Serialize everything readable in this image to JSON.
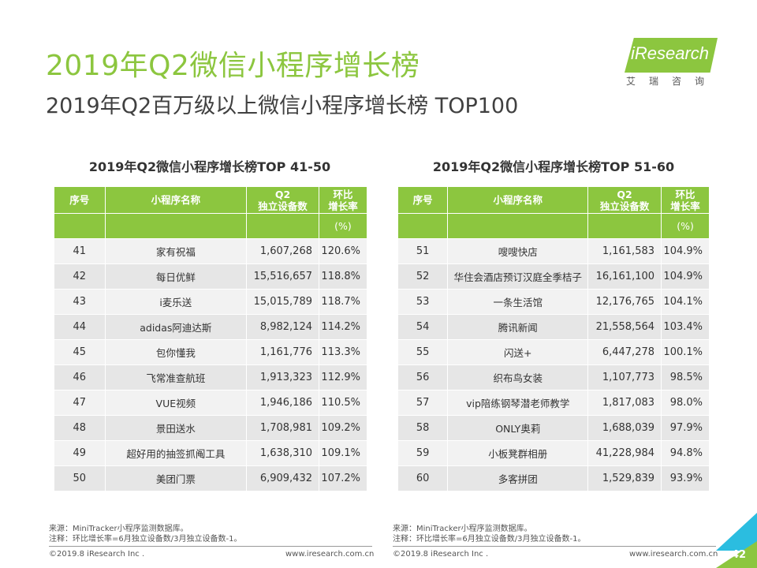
{
  "title": "2019年Q2微信小程序增长榜",
  "subtitle": "2019年Q2百万级以上微信小程序增长榜 TOP100",
  "logo": {
    "brand": "iResearch",
    "cn": "艾瑞咨询",
    "color": "#8cc63f"
  },
  "columns": {
    "rank": "序号",
    "name": "小程序名称",
    "devices_1": "Q2",
    "devices_2": "独立设备数",
    "growth_1": "环比",
    "growth_2": "增长率",
    "growth_unit": "(%)"
  },
  "left_table": {
    "title": "2019年Q2微信小程序增长榜TOP 41-50",
    "rows": [
      {
        "rank": "41",
        "name": "家有祝福",
        "devices": "1,607,268",
        "growth": "120.6%"
      },
      {
        "rank": "42",
        "name": "每日优鲜",
        "devices": "15,516,657",
        "growth": "118.8%"
      },
      {
        "rank": "43",
        "name": "i麦乐送",
        "devices": "15,015,789",
        "growth": "118.7%"
      },
      {
        "rank": "44",
        "name": "adidas阿迪达斯",
        "devices": "8,982,124",
        "growth": "114.2%"
      },
      {
        "rank": "45",
        "name": "包你懂我",
        "devices": "1,161,776",
        "growth": "113.3%"
      },
      {
        "rank": "46",
        "name": "飞常准查航班",
        "devices": "1,913,323",
        "growth": "112.9%"
      },
      {
        "rank": "47",
        "name": "VUE视频",
        "devices": "1,946,186",
        "growth": "110.5%"
      },
      {
        "rank": "48",
        "name": "景田送水",
        "devices": "1,708,981",
        "growth": "109.2%"
      },
      {
        "rank": "49",
        "name": "超好用的抽签抓阄工具",
        "devices": "1,638,310",
        "growth": "109.1%"
      },
      {
        "rank": "50",
        "name": "美团门票",
        "devices": "6,909,432",
        "growth": "107.2%"
      }
    ]
  },
  "right_table": {
    "title": "2019年Q2微信小程序增长榜TOP 51-60",
    "rows": [
      {
        "rank": "51",
        "name": "嗖嗖快店",
        "devices": "1,161,583",
        "growth": "104.9%"
      },
      {
        "rank": "52",
        "name": "华住会酒店预订汉庭全季桔子",
        "devices": "16,161,100",
        "growth": "104.9%"
      },
      {
        "rank": "53",
        "name": "一条生活馆",
        "devices": "12,176,765",
        "growth": "104.1%"
      },
      {
        "rank": "54",
        "name": "腾讯新闻",
        "devices": "21,558,564",
        "growth": "103.4%"
      },
      {
        "rank": "55",
        "name": "闪送+",
        "devices": "6,447,278",
        "growth": "100.1%"
      },
      {
        "rank": "56",
        "name": "织布鸟女装",
        "devices": "1,107,773",
        "growth": "98.5%"
      },
      {
        "rank": "57",
        "name": "vip陪练钢琴潜老师教学",
        "devices": "1,817,083",
        "growth": "98.0%"
      },
      {
        "rank": "58",
        "name": "ONLY奥莉",
        "devices": "1,688,039",
        "growth": "97.9%"
      },
      {
        "rank": "59",
        "name": "小板凳群相册",
        "devices": "41,228,984",
        "growth": "94.8%"
      },
      {
        "rank": "60",
        "name": "多客拼团",
        "devices": "1,529,839",
        "growth": "93.9%"
      }
    ]
  },
  "notes": {
    "source": "来源：MiniTracker小程序监测数据库。",
    "comment": "注释：环比增长率=6月独立设备数/3月独立设备数-1。"
  },
  "footer": {
    "copyright": "©2019.8 iResearch Inc .",
    "website": "www.iresearch.com.cn",
    "page": "42"
  },
  "colors": {
    "accent": "#8cc63f",
    "corner_blue": "#2bbde0"
  }
}
